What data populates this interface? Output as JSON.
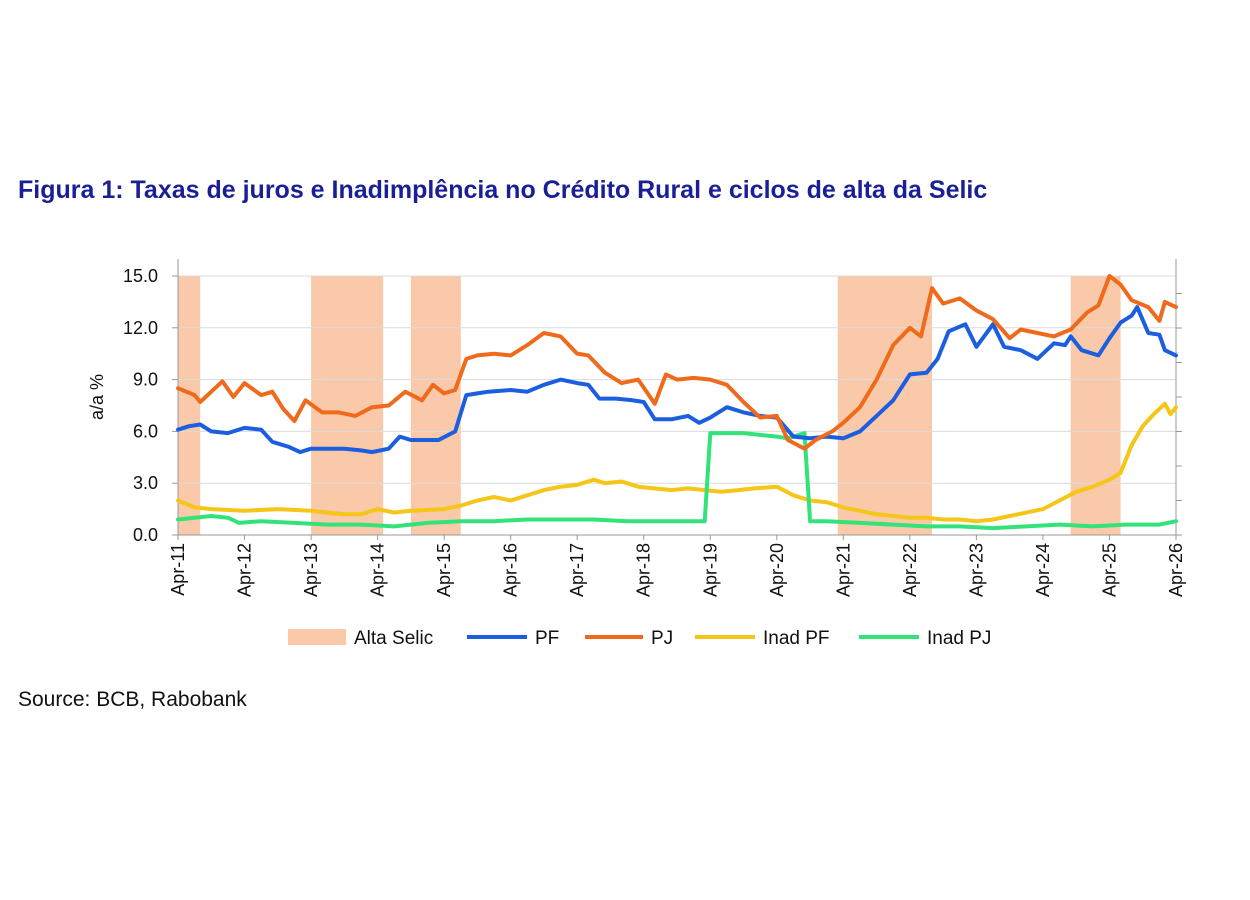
{
  "title": "Figura 1: Taxas de juros e Inadimplência no Crédito Rural e ciclos de alta da Selic",
  "source": "Source: BCB, Rabobank",
  "chart_data": {
    "type": "line",
    "ylabel": "a/a %",
    "ylim": [
      0,
      15
    ],
    "y_ticks": [
      "0.0",
      "3.0",
      "6.0",
      "9.0",
      "12.0",
      "15.0"
    ],
    "x_range": [
      "2011-04",
      "2026-04"
    ],
    "x_ticks": [
      "Apr-11",
      "Apr-12",
      "Apr-13",
      "Apr-14",
      "Apr-15",
      "Apr-16",
      "Apr-17",
      "Apr-18",
      "Apr-19",
      "Apr-20",
      "Apr-21",
      "Apr-22",
      "Apr-23",
      "Apr-24",
      "Apr-25",
      "Apr-26"
    ],
    "grid": "horizontal",
    "legend_position": "bottom",
    "shaded_periods": {
      "name": "Alta Selic",
      "color": "#f9c9a9",
      "periods": [
        [
          "2011-04",
          "2011-08"
        ],
        [
          "2013-04",
          "2014-05"
        ],
        [
          "2014-10",
          "2015-07"
        ],
        [
          "2021-03",
          "2022-08"
        ],
        [
          "2024-09",
          "2025-06"
        ]
      ]
    },
    "series": [
      {
        "name": "PF",
        "color": "#1b5ee0",
        "points": [
          [
            "2011-04",
            6.1
          ],
          [
            "2011-06",
            6.3
          ],
          [
            "2011-08",
            6.4
          ],
          [
            "2011-10",
            6.0
          ],
          [
            "2012-01",
            5.9
          ],
          [
            "2012-04",
            6.2
          ],
          [
            "2012-07",
            6.1
          ],
          [
            "2012-09",
            5.4
          ],
          [
            "2012-12",
            5.1
          ],
          [
            "2013-02",
            4.8
          ],
          [
            "2013-04",
            5.0
          ],
          [
            "2013-07",
            5.0
          ],
          [
            "2013-10",
            5.0
          ],
          [
            "2014-01",
            4.9
          ],
          [
            "2014-03",
            4.8
          ],
          [
            "2014-06",
            5.0
          ],
          [
            "2014-08",
            5.7
          ],
          [
            "2014-10",
            5.5
          ],
          [
            "2014-12",
            5.5
          ],
          [
            "2015-03",
            5.5
          ],
          [
            "2015-06",
            6.0
          ],
          [
            "2015-08",
            8.1
          ],
          [
            "2015-10",
            8.2
          ],
          [
            "2015-12",
            8.3
          ],
          [
            "2016-04",
            8.4
          ],
          [
            "2016-07",
            8.3
          ],
          [
            "2016-10",
            8.7
          ],
          [
            "2017-01",
            9.0
          ],
          [
            "2017-04",
            8.8
          ],
          [
            "2017-06",
            8.7
          ],
          [
            "2017-08",
            7.9
          ],
          [
            "2017-11",
            7.9
          ],
          [
            "2018-02",
            7.8
          ],
          [
            "2018-04",
            7.7
          ],
          [
            "2018-06",
            6.7
          ],
          [
            "2018-09",
            6.7
          ],
          [
            "2018-12",
            6.9
          ],
          [
            "2019-02",
            6.5
          ],
          [
            "2019-04",
            6.8
          ],
          [
            "2019-07",
            7.4
          ],
          [
            "2019-10",
            7.1
          ],
          [
            "2020-01",
            6.9
          ],
          [
            "2020-04",
            6.8
          ],
          [
            "2020-07",
            5.7
          ],
          [
            "2020-10",
            5.6
          ],
          [
            "2021-01",
            5.7
          ],
          [
            "2021-04",
            5.6
          ],
          [
            "2021-07",
            6.0
          ],
          [
            "2021-10",
            6.9
          ],
          [
            "2022-01",
            7.8
          ],
          [
            "2022-04",
            9.3
          ],
          [
            "2022-07",
            9.4
          ],
          [
            "2022-09",
            10.2
          ],
          [
            "2022-11",
            11.8
          ],
          [
            "2023-02",
            12.2
          ],
          [
            "2023-04",
            10.9
          ],
          [
            "2023-07",
            12.2
          ],
          [
            "2023-09",
            10.9
          ],
          [
            "2023-12",
            10.7
          ],
          [
            "2024-03",
            10.2
          ],
          [
            "2024-06",
            11.1
          ],
          [
            "2024-08",
            11.0
          ],
          [
            "2024-09",
            11.5
          ],
          [
            "2024-11",
            10.7
          ],
          [
            "2025-02",
            10.4
          ],
          [
            "2025-04",
            11.4
          ],
          [
            "2025-06",
            12.3
          ],
          [
            "2025-08",
            12.7
          ],
          [
            "2025-09",
            13.2
          ],
          [
            "2025-11",
            11.7
          ],
          [
            "2026-01",
            11.6
          ],
          [
            "2026-02",
            10.7
          ],
          [
            "2026-04",
            10.4
          ]
        ]
      },
      {
        "name": "PJ",
        "color": "#f06a1c",
        "points": [
          [
            "2011-04",
            8.5
          ],
          [
            "2011-07",
            8.1
          ],
          [
            "2011-08",
            7.7
          ],
          [
            "2011-10",
            8.3
          ],
          [
            "2011-12",
            8.9
          ],
          [
            "2012-02",
            8.0
          ],
          [
            "2012-04",
            8.8
          ],
          [
            "2012-07",
            8.1
          ],
          [
            "2012-09",
            8.3
          ],
          [
            "2012-11",
            7.3
          ],
          [
            "2013-01",
            6.6
          ],
          [
            "2013-03",
            7.8
          ],
          [
            "2013-06",
            7.1
          ],
          [
            "2013-09",
            7.1
          ],
          [
            "2013-12",
            6.9
          ],
          [
            "2014-03",
            7.4
          ],
          [
            "2014-06",
            7.5
          ],
          [
            "2014-09",
            8.3
          ],
          [
            "2014-12",
            7.8
          ],
          [
            "2015-02",
            8.7
          ],
          [
            "2015-04",
            8.2
          ],
          [
            "2015-06",
            8.4
          ],
          [
            "2015-08",
            10.2
          ],
          [
            "2015-10",
            10.4
          ],
          [
            "2016-01",
            10.5
          ],
          [
            "2016-04",
            10.4
          ],
          [
            "2016-07",
            11.0
          ],
          [
            "2016-10",
            11.7
          ],
          [
            "2017-01",
            11.5
          ],
          [
            "2017-04",
            10.5
          ],
          [
            "2017-06",
            10.4
          ],
          [
            "2017-09",
            9.4
          ],
          [
            "2017-12",
            8.8
          ],
          [
            "2018-03",
            9.0
          ],
          [
            "2018-06",
            7.6
          ],
          [
            "2018-08",
            9.3
          ],
          [
            "2018-10",
            9.0
          ],
          [
            "2019-01",
            9.1
          ],
          [
            "2019-04",
            9.0
          ],
          [
            "2019-07",
            8.7
          ],
          [
            "2019-10",
            7.7
          ],
          [
            "2020-01",
            6.8
          ],
          [
            "2020-04",
            6.9
          ],
          [
            "2020-06",
            5.5
          ],
          [
            "2020-09",
            5.0
          ],
          [
            "2020-11",
            5.5
          ],
          [
            "2021-02",
            6.0
          ],
          [
            "2021-04",
            6.5
          ],
          [
            "2021-07",
            7.4
          ],
          [
            "2021-10",
            9.0
          ],
          [
            "2022-01",
            11.0
          ],
          [
            "2022-04",
            12.0
          ],
          [
            "2022-06",
            11.5
          ],
          [
            "2022-08",
            14.3
          ],
          [
            "2022-10",
            13.4
          ],
          [
            "2023-01",
            13.7
          ],
          [
            "2023-04",
            13.0
          ],
          [
            "2023-07",
            12.5
          ],
          [
            "2023-10",
            11.4
          ],
          [
            "2023-12",
            11.9
          ],
          [
            "2024-03",
            11.7
          ],
          [
            "2024-06",
            11.5
          ],
          [
            "2024-09",
            11.9
          ],
          [
            "2024-12",
            12.9
          ],
          [
            "2025-02",
            13.3
          ],
          [
            "2025-04",
            15.0
          ],
          [
            "2025-06",
            14.5
          ],
          [
            "2025-08",
            13.6
          ],
          [
            "2025-11",
            13.2
          ],
          [
            "2026-01",
            12.4
          ],
          [
            "2026-02",
            13.5
          ],
          [
            "2026-04",
            13.2
          ]
        ]
      },
      {
        "name": "Inad PF",
        "color": "#f5c518",
        "points": [
          [
            "2011-04",
            2.0
          ],
          [
            "2011-07",
            1.6
          ],
          [
            "2011-10",
            1.5
          ],
          [
            "2012-04",
            1.4
          ],
          [
            "2012-10",
            1.5
          ],
          [
            "2013-04",
            1.4
          ],
          [
            "2013-07",
            1.3
          ],
          [
            "2013-10",
            1.2
          ],
          [
            "2014-01",
            1.2
          ],
          [
            "2014-04",
            1.5
          ],
          [
            "2014-07",
            1.3
          ],
          [
            "2014-10",
            1.4
          ],
          [
            "2015-04",
            1.5
          ],
          [
            "2015-07",
            1.7
          ],
          [
            "2015-10",
            2.0
          ],
          [
            "2016-01",
            2.2
          ],
          [
            "2016-04",
            2.0
          ],
          [
            "2016-07",
            2.3
          ],
          [
            "2016-10",
            2.6
          ],
          [
            "2017-01",
            2.8
          ],
          [
            "2017-04",
            2.9
          ],
          [
            "2017-07",
            3.2
          ],
          [
            "2017-09",
            3.0
          ],
          [
            "2017-12",
            3.1
          ],
          [
            "2018-03",
            2.8
          ],
          [
            "2018-06",
            2.7
          ],
          [
            "2018-09",
            2.6
          ],
          [
            "2018-12",
            2.7
          ],
          [
            "2019-03",
            2.6
          ],
          [
            "2019-06",
            2.5
          ],
          [
            "2019-09",
            2.6
          ],
          [
            "2019-12",
            2.7
          ],
          [
            "2020-04",
            2.8
          ],
          [
            "2020-07",
            2.3
          ],
          [
            "2020-10",
            2.0
          ],
          [
            "2021-01",
            1.9
          ],
          [
            "2021-04",
            1.6
          ],
          [
            "2021-07",
            1.4
          ],
          [
            "2021-10",
            1.2
          ],
          [
            "2022-01",
            1.1
          ],
          [
            "2022-04",
            1.0
          ],
          [
            "2022-07",
            1.0
          ],
          [
            "2022-10",
            0.9
          ],
          [
            "2023-01",
            0.9
          ],
          [
            "2023-04",
            0.8
          ],
          [
            "2023-07",
            0.9
          ],
          [
            "2023-10",
            1.1
          ],
          [
            "2024-01",
            1.3
          ],
          [
            "2024-04",
            1.5
          ],
          [
            "2024-07",
            2.0
          ],
          [
            "2024-10",
            2.5
          ],
          [
            "2025-01",
            2.8
          ],
          [
            "2025-04",
            3.2
          ],
          [
            "2025-06",
            3.6
          ],
          [
            "2025-08",
            5.2
          ],
          [
            "2025-10",
            6.3
          ],
          [
            "2025-12",
            7.0
          ],
          [
            "2026-02",
            7.6
          ],
          [
            "2026-03",
            7.0
          ],
          [
            "2026-04",
            7.4
          ]
        ]
      },
      {
        "name": "Inad PJ",
        "color": "#33e37a",
        "points": [
          [
            "2011-04",
            0.9
          ],
          [
            "2011-07",
            1.0
          ],
          [
            "2011-10",
            1.1
          ],
          [
            "2012-01",
            1.0
          ],
          [
            "2012-03",
            0.7
          ],
          [
            "2012-07",
            0.8
          ],
          [
            "2013-01",
            0.7
          ],
          [
            "2013-07",
            0.6
          ],
          [
            "2014-01",
            0.6
          ],
          [
            "2014-07",
            0.5
          ],
          [
            "2015-01",
            0.7
          ],
          [
            "2015-07",
            0.8
          ],
          [
            "2016-01",
            0.8
          ],
          [
            "2016-07",
            0.9
          ],
          [
            "2017-01",
            0.9
          ],
          [
            "2017-07",
            0.9
          ],
          [
            "2018-01",
            0.8
          ],
          [
            "2018-07",
            0.8
          ],
          [
            "2019-01",
            0.8
          ],
          [
            "2019-03",
            0.8
          ],
          [
            "2019-04",
            5.9
          ],
          [
            "2019-07",
            5.9
          ],
          [
            "2019-10",
            5.9
          ],
          [
            "2020-01",
            5.8
          ],
          [
            "2020-04",
            5.7
          ],
          [
            "2020-06",
            5.6
          ],
          [
            "2020-09",
            5.9
          ],
          [
            "2020-10",
            0.8
          ],
          [
            "2021-01",
            0.8
          ],
          [
            "2021-07",
            0.7
          ],
          [
            "2022-01",
            0.6
          ],
          [
            "2022-07",
            0.5
          ],
          [
            "2023-01",
            0.5
          ],
          [
            "2023-07",
            0.4
          ],
          [
            "2024-01",
            0.5
          ],
          [
            "2024-07",
            0.6
          ],
          [
            "2025-01",
            0.5
          ],
          [
            "2025-07",
            0.6
          ],
          [
            "2026-01",
            0.6
          ],
          [
            "2026-04",
            0.8
          ]
        ]
      }
    ]
  }
}
